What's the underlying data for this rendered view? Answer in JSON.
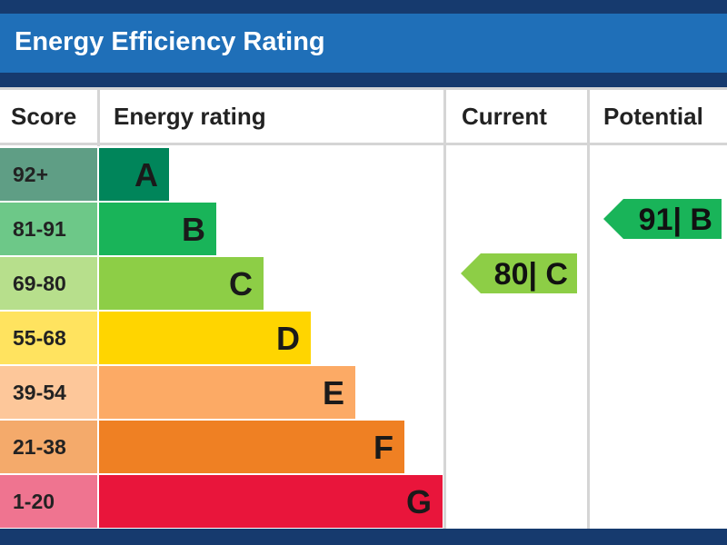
{
  "title": "Energy Efficiency Rating",
  "headers": {
    "score": "Score",
    "energy_rating": "Energy rating",
    "current": "Current",
    "potential": "Potential"
  },
  "chart_data": {
    "type": "bar",
    "title": "Energy Efficiency Rating",
    "categories": [
      "A",
      "B",
      "C",
      "D",
      "E",
      "F",
      "G"
    ],
    "bands": [
      {
        "score": "92+",
        "label": "A",
        "color": "#00855a",
        "score_color": "#5f9e85"
      },
      {
        "score": "81-91",
        "label": "B",
        "color": "#19b459",
        "score_color": "#6dc888"
      },
      {
        "score": "69-80",
        "label": "C",
        "color": "#8dce46",
        "score_color": "#b7df8c"
      },
      {
        "score": "55-68",
        "label": "D",
        "color": "#ffd500",
        "score_color": "#ffe35f"
      },
      {
        "score": "39-54",
        "label": "E",
        "color": "#fcaa65",
        "score_color": "#fdc79a"
      },
      {
        "score": "21-38",
        "label": "F",
        "color": "#ef8023",
        "score_color": "#f4aa6b"
      },
      {
        "score": "1-20",
        "label": "G",
        "color": "#e9153b",
        "score_color": "#ef7490"
      }
    ],
    "current": {
      "value": 80,
      "band": "C",
      "label": "80| C",
      "color": "#8dce46"
    },
    "potential": {
      "value": 91,
      "band": "B",
      "label": "91| B",
      "color": "#19b459"
    }
  }
}
